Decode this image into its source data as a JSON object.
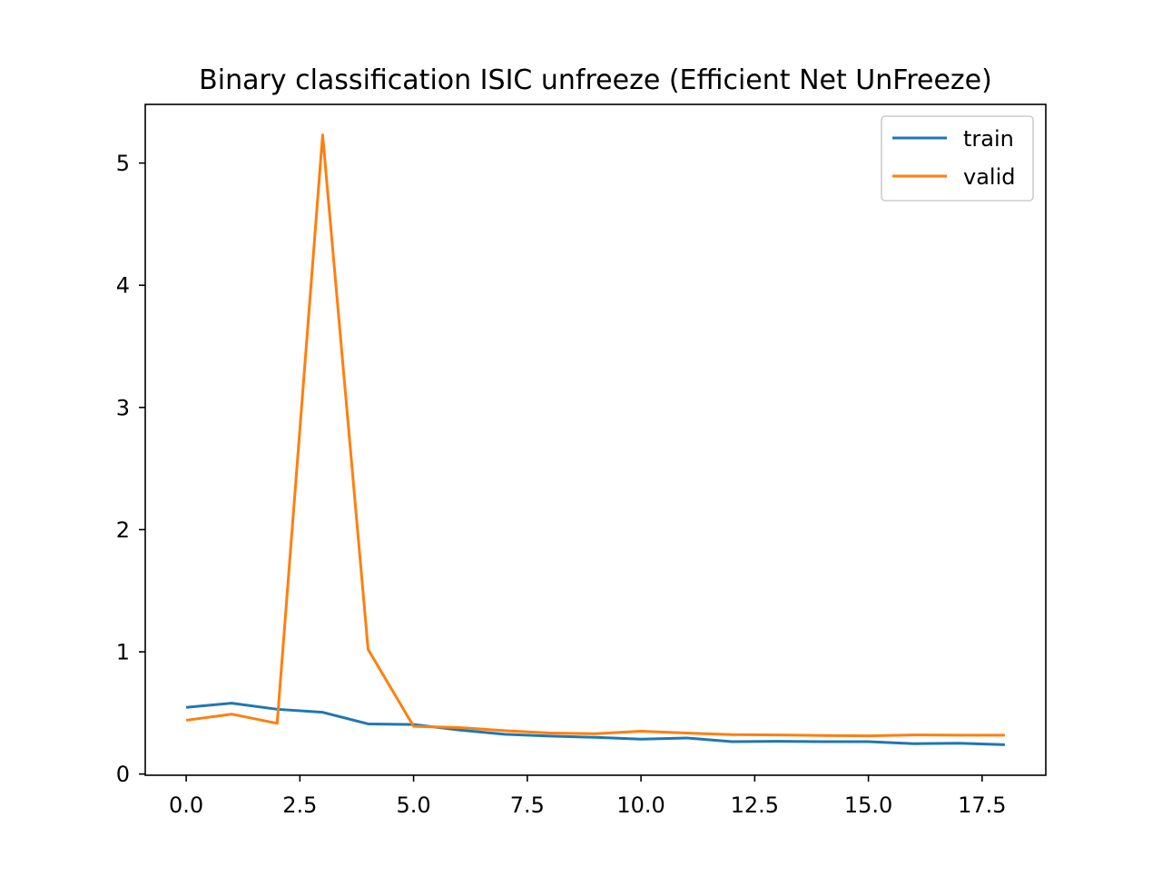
{
  "chart_data": {
    "type": "line",
    "title": "Binary classification ISIC unfreeze (Efficient Net UnFreeze)",
    "xlabel": "",
    "ylabel": "",
    "xlim": [
      -0.9,
      18.9
    ],
    "ylim": [
      -0.01,
      5.48
    ],
    "x_ticks": [
      0.0,
      2.5,
      5.0,
      7.5,
      10.0,
      12.5,
      15.0,
      17.5
    ],
    "x_tick_labels": [
      "0.0",
      "2.5",
      "5.0",
      "7.5",
      "10.0",
      "12.5",
      "15.0",
      "17.5"
    ],
    "y_ticks": [
      0,
      1,
      2,
      3,
      4,
      5
    ],
    "y_tick_labels": [
      "0",
      "1",
      "2",
      "3",
      "4",
      "5"
    ],
    "grid": false,
    "legend_position": "top-right",
    "x": [
      0,
      1,
      2,
      3,
      4,
      5,
      6,
      7,
      8,
      9,
      10,
      11,
      12,
      13,
      14,
      15,
      16,
      17,
      18
    ],
    "series": [
      {
        "name": "train",
        "color": "#1f77b4",
        "values": [
          0.545,
          0.58,
          0.53,
          0.505,
          0.41,
          0.405,
          0.36,
          0.325,
          0.31,
          0.3,
          0.285,
          0.295,
          0.265,
          0.268,
          0.265,
          0.265,
          0.248,
          0.252,
          0.24
        ]
      },
      {
        "name": "valid",
        "color": "#ff7f0e",
        "values": [
          0.44,
          0.49,
          0.415,
          5.23,
          1.02,
          0.39,
          0.38,
          0.355,
          0.335,
          0.33,
          0.35,
          0.335,
          0.322,
          0.32,
          0.315,
          0.312,
          0.32,
          0.318,
          0.318
        ]
      }
    ]
  }
}
